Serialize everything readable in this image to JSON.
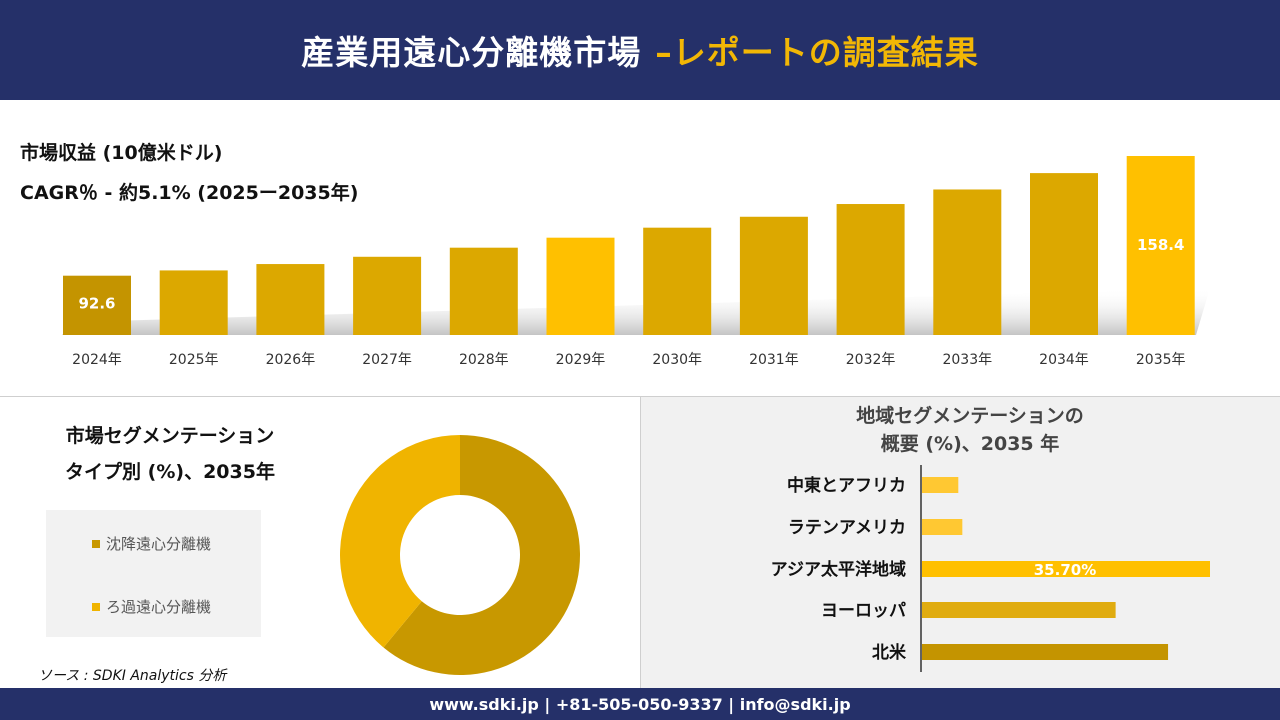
{
  "header": {
    "title_main": "産業用遠心分離機市場",
    "title_accent": "–レポートの調査結果"
  },
  "revenue_panel": {
    "title": "市場収益 (10億米ドル)",
    "cagr": "CAGR％ - 約5.1% (2025ー2035年)"
  },
  "segment_panel": {
    "title_line1": "市場セグメンテーション",
    "title_line2": "タイプ別 (%)、2035年",
    "legend": [
      "沈降遠心分離機",
      "ろ過遠心分離機"
    ],
    "source": "ソース : SDKI Analytics 分析"
  },
  "region_panel": {
    "title_line1": "地域セグメンテーションの",
    "title_line2": "概要 (%)、2035 年"
  },
  "footer": {
    "contact": "www.sdki.jp | +81-505-050-9337 | info@sdki.jp"
  },
  "colors": {
    "navy": "#253069",
    "accent": "#f2b705",
    "gold_dark": "#c49400",
    "gold": "#dca800",
    "gold_light": "#f2b705",
    "yellow": "#ffc000"
  },
  "chart_data": [
    {
      "type": "bar",
      "title": "市場収益 (10億米ドル)",
      "categories": [
        "2024年",
        "2025年",
        "2026年",
        "2027年",
        "2028年",
        "2029年",
        "2030年",
        "2031年",
        "2032年",
        "2033年",
        "2034年",
        "2035年"
      ],
      "values": [
        92.6,
        95.5,
        99.0,
        103.0,
        108.0,
        113.5,
        119.0,
        125.0,
        132.0,
        140.0,
        149.0,
        158.4
      ],
      "data_labels": {
        "0": "92.6",
        "11": "158.4"
      },
      "ylim": [
        60,
        165
      ],
      "grid": false,
      "legend": false
    },
    {
      "type": "pie",
      "variant": "donut",
      "labels": [
        "沈降遠心分離機",
        "ろ過遠心分離機"
      ],
      "values": [
        61,
        39
      ],
      "colors": [
        "#c89800",
        "#f0b400"
      ]
    },
    {
      "type": "bar",
      "orientation": "horizontal",
      "categories": [
        "中東とアフリカ",
        "ラテンアメリカ",
        "アジア太平洋地域",
        "ヨーロッパ",
        "北米"
      ],
      "values": [
        4.5,
        5.0,
        35.7,
        24.0,
        30.5
      ],
      "data_labels": {
        "2": "35.70%"
      },
      "colors": [
        "#ffc832",
        "#ffc832",
        "#ffc000",
        "#e0ac10",
        "#c49400"
      ]
    }
  ]
}
